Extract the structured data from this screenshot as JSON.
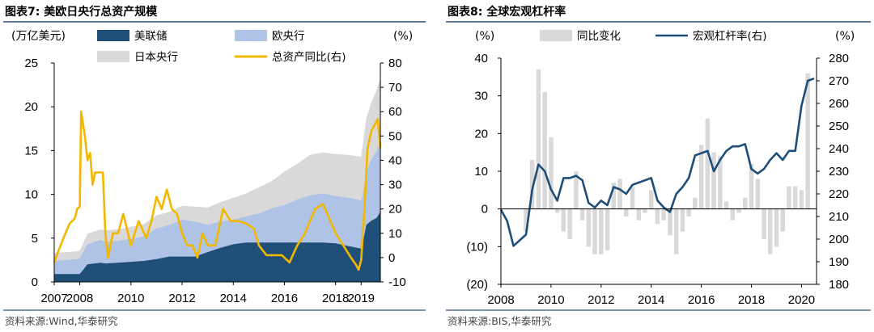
{
  "chart_data": [
    {
      "type": "area",
      "title": "图表7:  美欧日央行总资产规模",
      "left_unit": "(万亿美元)",
      "right_unit": "(%)",
      "source": "资料来源:Wind,华泰研究",
      "x_ticks": [
        "2007",
        "2008",
        "2010",
        "2012",
        "2014",
        "2016",
        "2018",
        "2019"
      ],
      "x_tick_pos": [
        2007,
        2008,
        2010,
        2012,
        2014,
        2016,
        2018,
        2019
      ],
      "xlim": [
        2007.0,
        2019.75
      ],
      "ylim_left": [
        0,
        25
      ],
      "y_ticks_left": [
        "0",
        "5",
        "10",
        "15",
        "20",
        "25"
      ],
      "ylim_right": [
        -10,
        80
      ],
      "y_ticks_right": [
        "-10",
        "0",
        "10",
        "20",
        "30",
        "40",
        "50",
        "60",
        "70",
        "80"
      ],
      "x": [
        2007.0,
        2007.5,
        2007.9,
        2008.0,
        2008.3,
        2008.8,
        2009.0,
        2009.5,
        2010.0,
        2010.5,
        2011.0,
        2011.5,
        2012.0,
        2012.5,
        2013.0,
        2013.5,
        2014.0,
        2014.5,
        2015.0,
        2015.5,
        2016.0,
        2016.5,
        2017.0,
        2017.5,
        2018.0,
        2018.5,
        2019.0,
        2019.05,
        2019.2,
        2019.4,
        2019.6,
        2019.75
      ],
      "series": [
        {
          "name": "美联储",
          "color": "#1f4e79",
          "values": [
            0.9,
            0.9,
            0.9,
            0.9,
            2.0,
            2.2,
            2.1,
            2.2,
            2.3,
            2.4,
            2.6,
            2.9,
            2.9,
            2.9,
            3.4,
            3.9,
            4.3,
            4.5,
            4.5,
            4.5,
            4.5,
            4.5,
            4.5,
            4.5,
            4.4,
            4.1,
            3.8,
            4.2,
            6.5,
            7.0,
            7.3,
            8.0
          ]
        },
        {
          "name": "欧央行",
          "color": "#aec3e6",
          "values": [
            1.5,
            1.6,
            1.7,
            1.8,
            2.3,
            2.6,
            2.5,
            2.5,
            2.6,
            2.8,
            3.5,
            3.6,
            4.2,
            4.0,
            3.1,
            3.0,
            2.8,
            3.0,
            3.3,
            3.9,
            4.3,
            4.9,
            5.4,
            5.6,
            5.4,
            5.5,
            5.5,
            5.6,
            6.0,
            7.0,
            7.6,
            8.0
          ]
        },
        {
          "name": "日本央行",
          "color": "#d9d9d9",
          "values": [
            0.9,
            0.9,
            0.9,
            0.9,
            1.2,
            1.2,
            1.3,
            1.3,
            1.4,
            1.4,
            1.5,
            1.5,
            1.6,
            1.7,
            2.0,
            2.2,
            2.5,
            2.6,
            3.0,
            3.1,
            3.8,
            4.1,
            4.6,
            4.7,
            4.8,
            4.9,
            5.0,
            5.6,
            6.2,
            6.5,
            7.0,
            7.2
          ]
        },
        {
          "name": "总资产同比(右)",
          "color": "#f2b800",
          "axis": "right",
          "x": [
            2007.0,
            2007.1,
            2007.25,
            2007.4,
            2007.6,
            2007.8,
            2007.9,
            2008.0,
            2008.05,
            2008.2,
            2008.3,
            2008.4,
            2008.5,
            2008.6,
            2008.75,
            2008.9,
            2009.0,
            2009.1,
            2009.3,
            2009.5,
            2009.7,
            2010.0,
            2010.3,
            2010.6,
            2010.8,
            2011.0,
            2011.2,
            2011.4,
            2011.6,
            2011.8,
            2012.0,
            2012.2,
            2012.4,
            2012.6,
            2012.8,
            2013.0,
            2013.3,
            2013.6,
            2013.9,
            2014.2,
            2014.5,
            2014.8,
            2015.0,
            2015.3,
            2015.6,
            2015.9,
            2016.2,
            2016.5,
            2016.8,
            2017.0,
            2017.2,
            2017.5,
            2017.8,
            2018.0,
            2018.3,
            2018.6,
            2018.8,
            2018.9,
            2019.0,
            2019.1,
            2019.25,
            2019.4,
            2019.55,
            2019.65,
            2019.75
          ],
          "values": [
            -2,
            1,
            5,
            9,
            14,
            16,
            20,
            21,
            60,
            50,
            40,
            43,
            30,
            35,
            35,
            35,
            10,
            0,
            10,
            10,
            18,
            5,
            15,
            8,
            15,
            25,
            20,
            28,
            20,
            18,
            10,
            5,
            5,
            0,
            10,
            5,
            5,
            20,
            15,
            15,
            14,
            12,
            5,
            1,
            1,
            1,
            -2,
            5,
            10,
            15,
            20,
            22,
            15,
            10,
            5,
            0,
            -3,
            -5,
            -1,
            15,
            45,
            52,
            55,
            57,
            45
          ]
        }
      ]
    },
    {
      "type": "bar+line",
      "title": "图表8:  全球宏观杠杆率",
      "left_unit": "(%)",
      "right_unit": "(%)",
      "source": "资料来源:BIS,华泰研究",
      "x_ticks": [
        "2008",
        "2010",
        "2012",
        "2014",
        "2016",
        "2018",
        "2020"
      ],
      "xlim": [
        2008.0,
        2020.6
      ],
      "ylim_left": [
        -20,
        40
      ],
      "y_ticks_left": [
        "(20)",
        "(10)",
        "0",
        "10",
        "20",
        "30",
        "40"
      ],
      "ylim_right": [
        180,
        280
      ],
      "y_ticks_right": [
        "180",
        "190",
        "200",
        "210",
        "220",
        "230",
        "240",
        "250",
        "260",
        "270",
        "280"
      ],
      "series": [
        {
          "name": "同比变化",
          "color": "#d9d9d9",
          "axis": "left",
          "x": [
            2009.0,
            2009.25,
            2009.5,
            2009.75,
            2010.0,
            2010.25,
            2010.5,
            2010.75,
            2011.0,
            2011.25,
            2011.5,
            2011.75,
            2012.0,
            2012.25,
            2012.5,
            2012.75,
            2013.0,
            2013.25,
            2013.5,
            2013.75,
            2014.0,
            2014.25,
            2014.5,
            2014.75,
            2015.0,
            2015.25,
            2015.5,
            2015.75,
            2016.0,
            2016.25,
            2016.5,
            2016.75,
            2017.0,
            2017.25,
            2017.5,
            2017.75,
            2018.0,
            2018.25,
            2018.5,
            2018.75,
            2019.0,
            2019.25,
            2019.5,
            2019.75,
            2020.0,
            2020.25
          ],
          "values": [
            -6,
            13,
            37,
            31,
            19,
            -1,
            -6,
            -8,
            10,
            -3,
            -10,
            -12,
            -12,
            -11,
            7,
            8,
            -2,
            6,
            -3,
            -1,
            5,
            -4,
            -3,
            -7,
            -12,
            -6,
            -2,
            3,
            17,
            24,
            15,
            14,
            2,
            -3,
            -1,
            3,
            12,
            8,
            -8,
            -12,
            -10,
            -6,
            6,
            6,
            5,
            36
          ]
        },
        {
          "name": "宏观杠杆率(右)",
          "color": "#1f4e79",
          "axis": "right",
          "x": [
            2008.0,
            2008.25,
            2008.5,
            2009.0,
            2009.25,
            2009.5,
            2009.75,
            2010.0,
            2010.25,
            2010.5,
            2010.75,
            2011.0,
            2011.25,
            2011.5,
            2011.75,
            2012.0,
            2012.25,
            2012.5,
            2012.75,
            2013.0,
            2013.25,
            2013.5,
            2013.75,
            2014.0,
            2014.25,
            2014.5,
            2014.75,
            2015.0,
            2015.25,
            2015.5,
            2015.75,
            2016.0,
            2016.25,
            2016.5,
            2016.75,
            2017.0,
            2017.25,
            2017.5,
            2017.75,
            2018.0,
            2018.25,
            2018.5,
            2018.75,
            2019.0,
            2019.25,
            2019.5,
            2019.75,
            2020.0,
            2020.25,
            2020.5
          ],
          "values": [
            213,
            208,
            197,
            202,
            222,
            233,
            230,
            222,
            217,
            227,
            227,
            228,
            226,
            216,
            214,
            217,
            215,
            223,
            222,
            220,
            224,
            225,
            226,
            227,
            217,
            214,
            212,
            220,
            223,
            227,
            237,
            238,
            239,
            230,
            235,
            239,
            241,
            241,
            242,
            231,
            229,
            231,
            235,
            238,
            235,
            239,
            239,
            259,
            270,
            271
          ]
        }
      ]
    }
  ]
}
